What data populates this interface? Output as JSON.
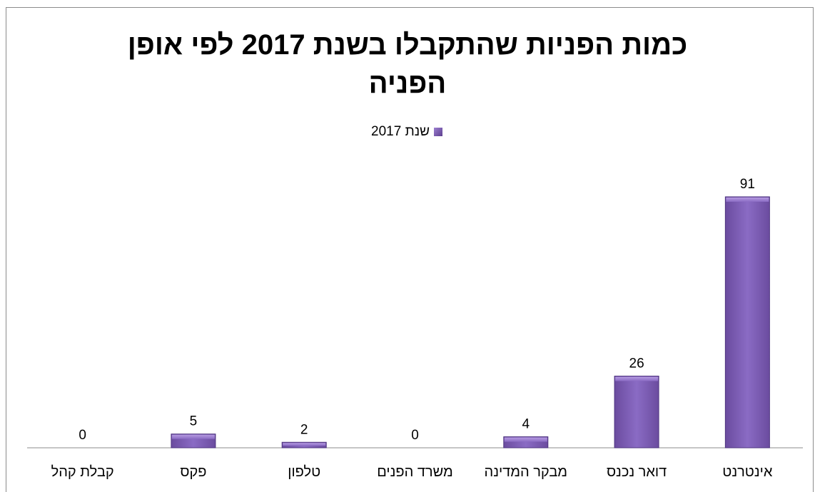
{
  "chart_data": {
    "type": "bar",
    "title": "כמות הפניות שהתקבלו בשנת 2017 לפי אופן הפניה",
    "title_lines": [
      "כמות הפניות שהתקבלו בשנת 2017 לפי אופן",
      "הפניה"
    ],
    "categories": [
      "אינטרנט",
      "דואר נכנס",
      "מבקר המדינה",
      "משרד הפנים",
      "טלפון",
      "פקס",
      "קבלת קהל"
    ],
    "series": [
      {
        "name": "שנת 2017",
        "values": [
          91,
          26,
          4,
          0,
          2,
          5,
          0
        ]
      }
    ],
    "ylim": [
      0,
      100
    ],
    "grid": false,
    "legend_position": "top",
    "bar_color": "#7f5fb8",
    "bar_color_dark": "#5b3d8f",
    "bar_color_light": "#a78ad6"
  }
}
